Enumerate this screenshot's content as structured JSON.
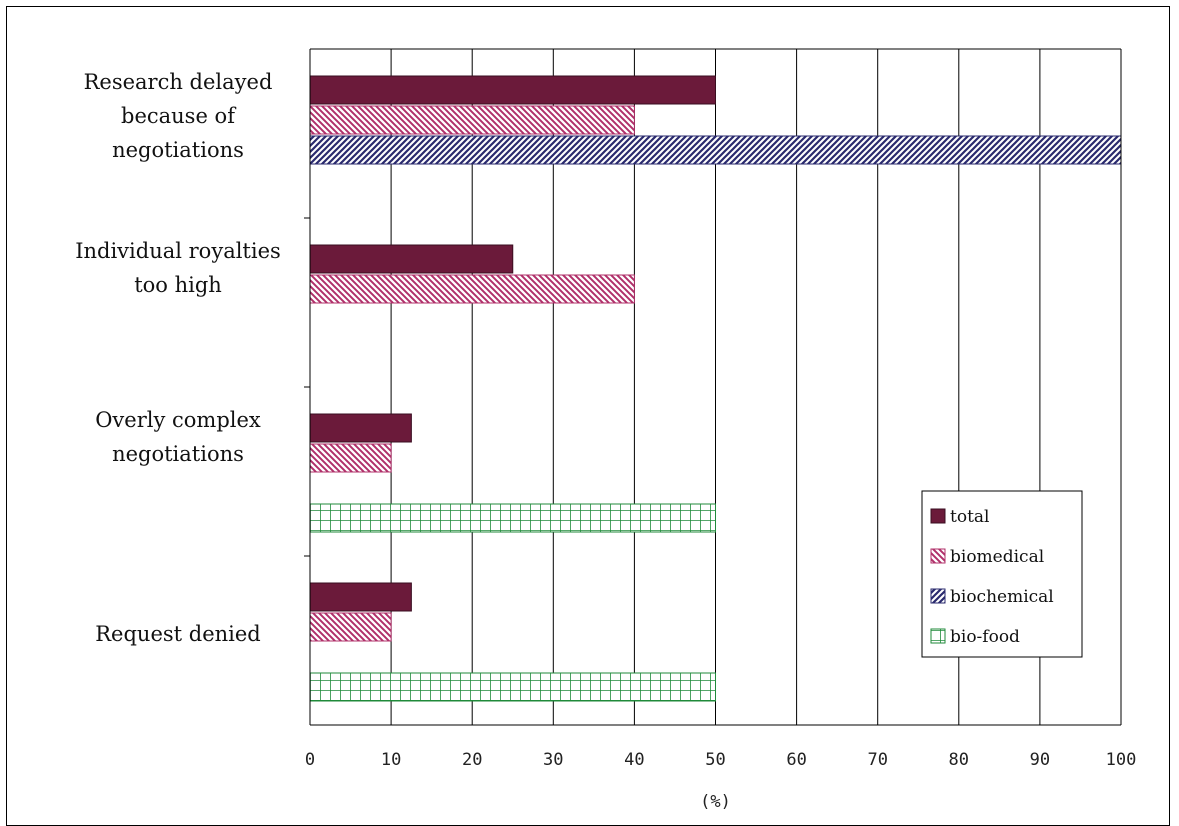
{
  "chart_data": {
    "type": "bar",
    "orientation": "horizontal",
    "categories": [
      "Research delayed because of negotiations",
      "Individual royalties too high",
      "Overly complex negotiations",
      "Request denied"
    ],
    "category_label_lines": [
      [
        "Research delayed",
        "because of",
        "negotiations"
      ],
      [
        "Individual royalties",
        "too high"
      ],
      [
        "Overly complex",
        "negotiations"
      ],
      [
        "Request denied"
      ]
    ],
    "series": [
      {
        "name": "total",
        "values": [
          50,
          25,
          12.5,
          12.5
        ],
        "color": "#6b1a3a",
        "pattern": "solid"
      },
      {
        "name": "biomedical",
        "values": [
          40,
          40,
          10,
          10
        ],
        "color": "#b0306a",
        "pattern": "diag-back"
      },
      {
        "name": "biochemical",
        "values": [
          100,
          0,
          0,
          0
        ],
        "color": "#2a2a6e",
        "pattern": "diag-fwd"
      },
      {
        "name": "bio-food",
        "values": [
          0,
          0,
          50,
          50
        ],
        "color": "#1f8a3a",
        "pattern": "grid"
      }
    ],
    "xlim": [
      0,
      100
    ],
    "xticks": [
      "0",
      "10",
      "20",
      "30",
      "40",
      "50",
      "60",
      "70",
      "80",
      "90",
      "100"
    ],
    "xlabel": "(%)",
    "grid": "vertical",
    "legend": "bottom-right"
  }
}
